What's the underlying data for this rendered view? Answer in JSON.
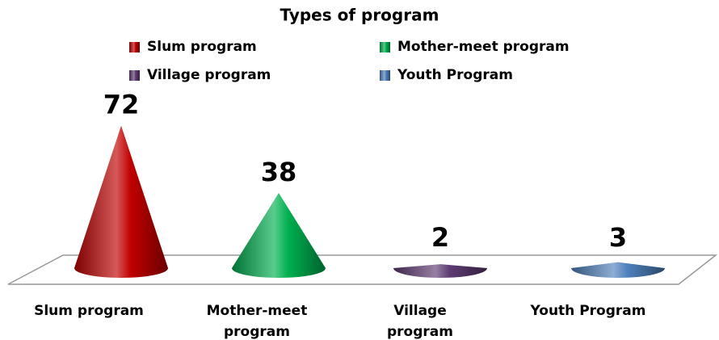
{
  "chart_data": {
    "type": "cone",
    "title": "Types of program",
    "categories": [
      "Slum program",
      "Mother-meet program",
      "Village program",
      "Youth Program"
    ],
    "values": [
      72,
      38,
      2,
      3
    ],
    "colors": [
      "#c00000",
      "#00b050",
      "#5f3b73",
      "#4f81bd"
    ]
  }
}
